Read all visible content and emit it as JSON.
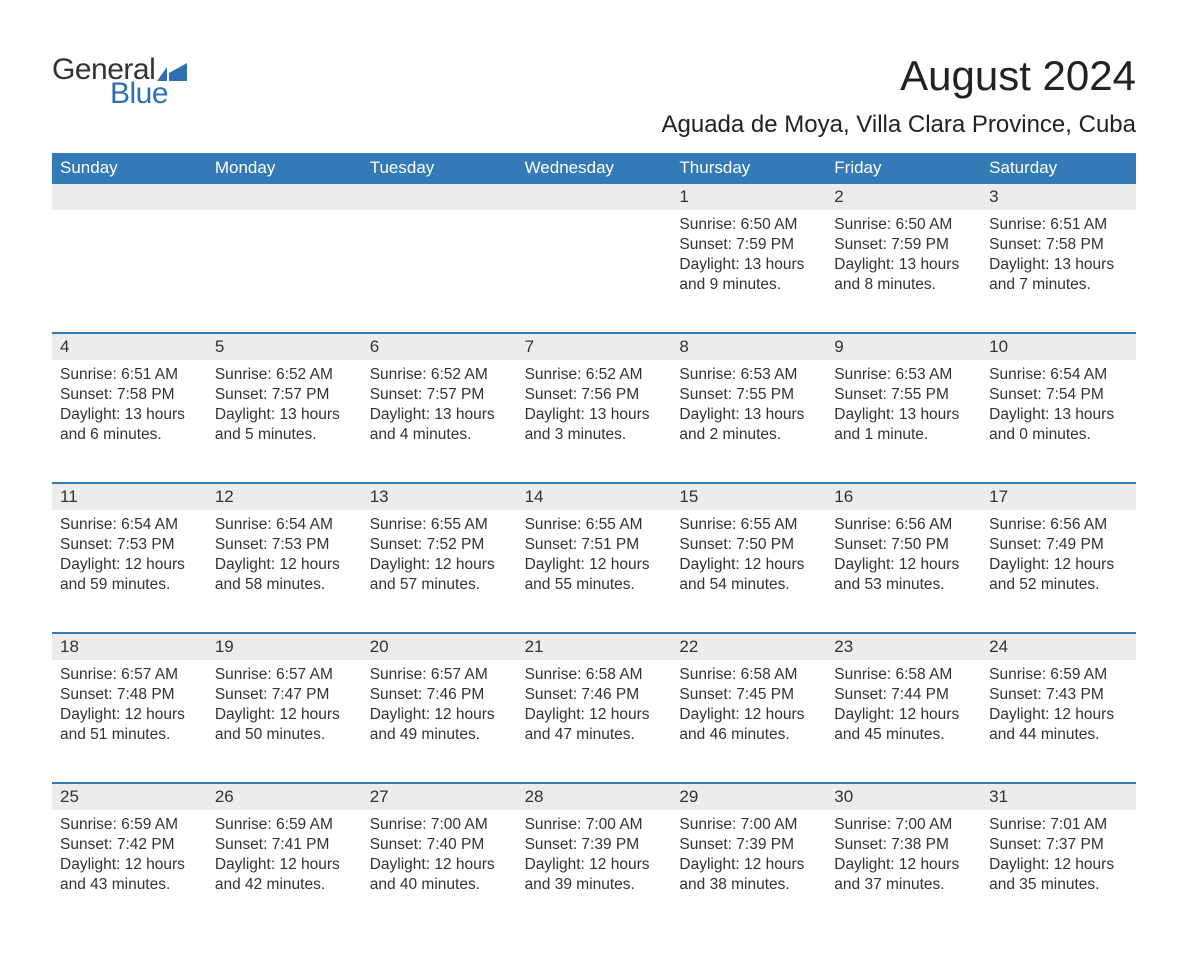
{
  "logo": {
    "text_general": "General",
    "text_blue": "Blue",
    "flag_color": "#2f6fb0"
  },
  "header": {
    "month_title": "August 2024",
    "location": "Aguada de Moya, Villa Clara Province, Cuba"
  },
  "colors": {
    "header_bg": "#337ab7",
    "header_text": "#ffffff",
    "daynum_bg": "#ececec",
    "text": "#333333",
    "week_border": "#337ab7",
    "background": "#ffffff"
  },
  "calendar": {
    "day_labels": [
      "Sunday",
      "Monday",
      "Tuesday",
      "Wednesday",
      "Thursday",
      "Friday",
      "Saturday"
    ],
    "weeks": [
      [
        null,
        null,
        null,
        null,
        {
          "day": "1",
          "sunrise": "Sunrise: 6:50 AM",
          "sunset": "Sunset: 7:59 PM",
          "daylight": "Daylight: 13 hours and 9 minutes."
        },
        {
          "day": "2",
          "sunrise": "Sunrise: 6:50 AM",
          "sunset": "Sunset: 7:59 PM",
          "daylight": "Daylight: 13 hours and 8 minutes."
        },
        {
          "day": "3",
          "sunrise": "Sunrise: 6:51 AM",
          "sunset": "Sunset: 7:58 PM",
          "daylight": "Daylight: 13 hours and 7 minutes."
        }
      ],
      [
        {
          "day": "4",
          "sunrise": "Sunrise: 6:51 AM",
          "sunset": "Sunset: 7:58 PM",
          "daylight": "Daylight: 13 hours and 6 minutes."
        },
        {
          "day": "5",
          "sunrise": "Sunrise: 6:52 AM",
          "sunset": "Sunset: 7:57 PM",
          "daylight": "Daylight: 13 hours and 5 minutes."
        },
        {
          "day": "6",
          "sunrise": "Sunrise: 6:52 AM",
          "sunset": "Sunset: 7:57 PM",
          "daylight": "Daylight: 13 hours and 4 minutes."
        },
        {
          "day": "7",
          "sunrise": "Sunrise: 6:52 AM",
          "sunset": "Sunset: 7:56 PM",
          "daylight": "Daylight: 13 hours and 3 minutes."
        },
        {
          "day": "8",
          "sunrise": "Sunrise: 6:53 AM",
          "sunset": "Sunset: 7:55 PM",
          "daylight": "Daylight: 13 hours and 2 minutes."
        },
        {
          "day": "9",
          "sunrise": "Sunrise: 6:53 AM",
          "sunset": "Sunset: 7:55 PM",
          "daylight": "Daylight: 13 hours and 1 minute."
        },
        {
          "day": "10",
          "sunrise": "Sunrise: 6:54 AM",
          "sunset": "Sunset: 7:54 PM",
          "daylight": "Daylight: 13 hours and 0 minutes."
        }
      ],
      [
        {
          "day": "11",
          "sunrise": "Sunrise: 6:54 AM",
          "sunset": "Sunset: 7:53 PM",
          "daylight": "Daylight: 12 hours and 59 minutes."
        },
        {
          "day": "12",
          "sunrise": "Sunrise: 6:54 AM",
          "sunset": "Sunset: 7:53 PM",
          "daylight": "Daylight: 12 hours and 58 minutes."
        },
        {
          "day": "13",
          "sunrise": "Sunrise: 6:55 AM",
          "sunset": "Sunset: 7:52 PM",
          "daylight": "Daylight: 12 hours and 57 minutes."
        },
        {
          "day": "14",
          "sunrise": "Sunrise: 6:55 AM",
          "sunset": "Sunset: 7:51 PM",
          "daylight": "Daylight: 12 hours and 55 minutes."
        },
        {
          "day": "15",
          "sunrise": "Sunrise: 6:55 AM",
          "sunset": "Sunset: 7:50 PM",
          "daylight": "Daylight: 12 hours and 54 minutes."
        },
        {
          "day": "16",
          "sunrise": "Sunrise: 6:56 AM",
          "sunset": "Sunset: 7:50 PM",
          "daylight": "Daylight: 12 hours and 53 minutes."
        },
        {
          "day": "17",
          "sunrise": "Sunrise: 6:56 AM",
          "sunset": "Sunset: 7:49 PM",
          "daylight": "Daylight: 12 hours and 52 minutes."
        }
      ],
      [
        {
          "day": "18",
          "sunrise": "Sunrise: 6:57 AM",
          "sunset": "Sunset: 7:48 PM",
          "daylight": "Daylight: 12 hours and 51 minutes."
        },
        {
          "day": "19",
          "sunrise": "Sunrise: 6:57 AM",
          "sunset": "Sunset: 7:47 PM",
          "daylight": "Daylight: 12 hours and 50 minutes."
        },
        {
          "day": "20",
          "sunrise": "Sunrise: 6:57 AM",
          "sunset": "Sunset: 7:46 PM",
          "daylight": "Daylight: 12 hours and 49 minutes."
        },
        {
          "day": "21",
          "sunrise": "Sunrise: 6:58 AM",
          "sunset": "Sunset: 7:46 PM",
          "daylight": "Daylight: 12 hours and 47 minutes."
        },
        {
          "day": "22",
          "sunrise": "Sunrise: 6:58 AM",
          "sunset": "Sunset: 7:45 PM",
          "daylight": "Daylight: 12 hours and 46 minutes."
        },
        {
          "day": "23",
          "sunrise": "Sunrise: 6:58 AM",
          "sunset": "Sunset: 7:44 PM",
          "daylight": "Daylight: 12 hours and 45 minutes."
        },
        {
          "day": "24",
          "sunrise": "Sunrise: 6:59 AM",
          "sunset": "Sunset: 7:43 PM",
          "daylight": "Daylight: 12 hours and 44 minutes."
        }
      ],
      [
        {
          "day": "25",
          "sunrise": "Sunrise: 6:59 AM",
          "sunset": "Sunset: 7:42 PM",
          "daylight": "Daylight: 12 hours and 43 minutes."
        },
        {
          "day": "26",
          "sunrise": "Sunrise: 6:59 AM",
          "sunset": "Sunset: 7:41 PM",
          "daylight": "Daylight: 12 hours and 42 minutes."
        },
        {
          "day": "27",
          "sunrise": "Sunrise: 7:00 AM",
          "sunset": "Sunset: 7:40 PM",
          "daylight": "Daylight: 12 hours and 40 minutes."
        },
        {
          "day": "28",
          "sunrise": "Sunrise: 7:00 AM",
          "sunset": "Sunset: 7:39 PM",
          "daylight": "Daylight: 12 hours and 39 minutes."
        },
        {
          "day": "29",
          "sunrise": "Sunrise: 7:00 AM",
          "sunset": "Sunset: 7:39 PM",
          "daylight": "Daylight: 12 hours and 38 minutes."
        },
        {
          "day": "30",
          "sunrise": "Sunrise: 7:00 AM",
          "sunset": "Sunset: 7:38 PM",
          "daylight": "Daylight: 12 hours and 37 minutes."
        },
        {
          "day": "31",
          "sunrise": "Sunrise: 7:01 AM",
          "sunset": "Sunset: 7:37 PM",
          "daylight": "Daylight: 12 hours and 35 minutes."
        }
      ]
    ]
  }
}
